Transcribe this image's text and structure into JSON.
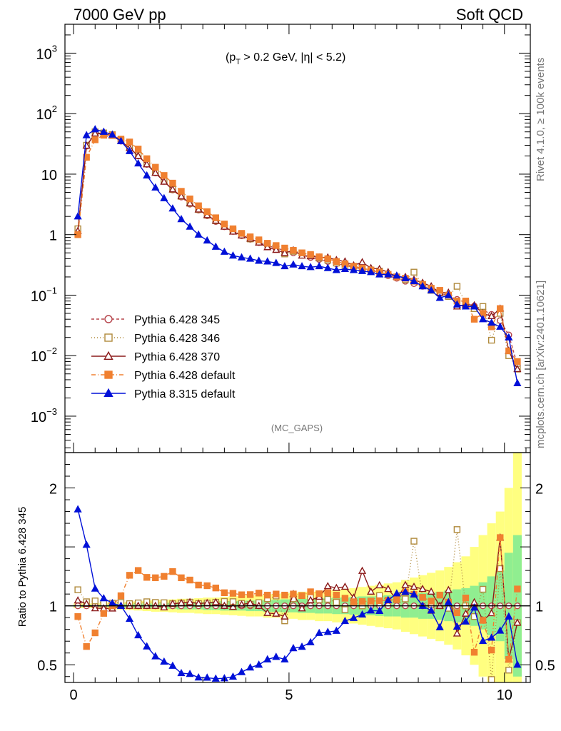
{
  "header": {
    "left_title": "7000 GeV pp",
    "right_title": "Soft QCD",
    "cut_label_pre": "(p",
    "cut_label_sub": "T",
    "cut_label_post": " > 0.2 GeV, |η| < 5.2)",
    "analysis_tag": "(MC_GAPS)",
    "side_top": "Rivet 4.1.0, ≥ 100k events",
    "side_bottom": "mcplots.cern.ch [arXiv:2401.10621]",
    "ratio_ylabel": "Ratio to Pythia 6.428 345"
  },
  "colors": {
    "p345": "#b5434a",
    "p346": "#b08a3c",
    "p370": "#8b1a1a",
    "p6def": "#f08030",
    "p8def": "#0010d8",
    "band_green": "#90ee90",
    "band_yellow": "#ffff80"
  },
  "chart_data": {
    "type": "line",
    "xlim": [
      -0.2,
      10.6
    ],
    "main": {
      "yscale": "log",
      "ylim": [
        0.00025,
        3000
      ],
      "y_ticks": [
        {
          "value": 0.001,
          "base": "10",
          "exp": "−3"
        },
        {
          "value": 0.01,
          "base": "10",
          "exp": "−2"
        },
        {
          "value": 0.1,
          "base": "10",
          "exp": "−1"
        },
        {
          "value": 1,
          "base": "1",
          "exp": ""
        },
        {
          "value": 10,
          "base": "10",
          "exp": ""
        },
        {
          "value": 100,
          "base": "10",
          "exp": "2"
        },
        {
          "value": 1000,
          "base": "10",
          "exp": "3"
        }
      ]
    },
    "ratio": {
      "ylim": [
        0.35,
        2.3
      ],
      "y_ticks": [
        {
          "value": 0.5,
          "label": "0.5"
        },
        {
          "value": 1,
          "label": "1"
        },
        {
          "value": 2,
          "label": "2"
        }
      ]
    },
    "x_ticks": [
      {
        "value": 0,
        "label": "0"
      },
      {
        "value": 5,
        "label": "5"
      },
      {
        "value": 10,
        "label": "10"
      }
    ],
    "legend": [
      {
        "key": "p345",
        "label": "Pythia 6.428 345",
        "marker": "circle-open",
        "dash": "4,3"
      },
      {
        "key": "p346",
        "label": "Pythia 6.428 346",
        "marker": "square-open",
        "dash": "1,3"
      },
      {
        "key": "p370",
        "label": "Pythia 6.428 370",
        "marker": "triangle-open",
        "dash": ""
      },
      {
        "key": "p6def",
        "label": "Pythia 6.428 default",
        "marker": "square-filled",
        "dash": "6,3,1,3"
      },
      {
        "key": "p8def",
        "label": "Pythia 8.315 default",
        "marker": "triangle-filled",
        "dash": ""
      }
    ],
    "x": [
      0.1,
      0.3,
      0.5,
      0.7,
      0.9,
      1.1,
      1.3,
      1.5,
      1.7,
      1.9,
      2.1,
      2.3,
      2.5,
      2.7,
      2.9,
      3.1,
      3.3,
      3.5,
      3.7,
      3.9,
      4.1,
      4.3,
      4.5,
      4.7,
      4.9,
      5.1,
      5.3,
      5.5,
      5.7,
      5.9,
      6.1,
      6.3,
      6.5,
      6.7,
      6.9,
      7.1,
      7.3,
      7.5,
      7.7,
      7.9,
      8.1,
      8.3,
      8.5,
      8.7,
      8.9,
      9.1,
      9.3,
      9.5,
      9.7,
      9.9,
      10.1,
      10.3
    ],
    "series": [
      {
        "key": "p345",
        "name": "Pythia 6.428 345",
        "values": [
          1.1,
          29,
          48,
          47,
          44,
          35,
          27,
          20,
          14.5,
          10.5,
          7.6,
          5.5,
          4.2,
          3.2,
          2.55,
          2.05,
          1.65,
          1.35,
          1.13,
          0.96,
          0.84,
          0.74,
          0.66,
          0.6,
          0.55,
          0.5,
          0.46,
          0.42,
          0.39,
          0.36,
          0.33,
          0.31,
          0.29,
          0.27,
          0.25,
          0.23,
          0.21,
          0.19,
          0.17,
          0.155,
          0.14,
          0.125,
          0.11,
          0.097,
          0.085,
          0.075,
          0.066,
          0.057,
          0.048,
          0.038,
          0.022,
          0.007
        ]
      },
      {
        "key": "p346",
        "name": "Pythia 6.428 346",
        "values": [
          1.25,
          30,
          50,
          48,
          45,
          36,
          27.5,
          20.5,
          15,
          10.8,
          7.8,
          5.6,
          4.3,
          3.3,
          2.6,
          2.1,
          1.7,
          1.4,
          1.17,
          0.98,
          0.85,
          0.76,
          0.7,
          0.65,
          0.48,
          0.53,
          0.5,
          0.45,
          0.41,
          0.38,
          0.34,
          0.3,
          0.3,
          0.27,
          0.26,
          0.25,
          0.22,
          0.2,
          0.18,
          0.24,
          0.15,
          0.12,
          0.11,
          0.095,
          0.14,
          0.075,
          0.06,
          0.065,
          0.018,
          0.05,
          0.01,
          0.006
        ]
      },
      {
        "key": "p370",
        "name": "Pythia 6.428 370",
        "values": [
          1.15,
          29.5,
          47,
          46,
          43,
          35,
          27,
          20,
          14.5,
          10.5,
          7.5,
          5.6,
          4.3,
          3.3,
          2.6,
          2.1,
          1.7,
          1.35,
          1.12,
          0.97,
          0.86,
          0.74,
          0.62,
          0.56,
          0.5,
          0.55,
          0.45,
          0.44,
          0.42,
          0.42,
          0.38,
          0.36,
          0.31,
          0.35,
          0.28,
          0.27,
          0.24,
          0.2,
          0.2,
          0.18,
          0.16,
          0.14,
          0.11,
          0.11,
          0.065,
          0.07,
          0.068,
          0.05,
          0.045,
          0.06,
          0.012,
          0.006
        ]
      },
      {
        "key": "p6def",
        "name": "Pythia 6.428 default",
        "values": [
          1.0,
          19,
          37,
          44,
          44,
          38,
          34,
          26,
          18,
          13,
          9.5,
          7.1,
          5.2,
          3.9,
          3.0,
          2.4,
          1.9,
          1.5,
          1.25,
          1.05,
          0.92,
          0.82,
          0.72,
          0.66,
          0.6,
          0.55,
          0.5,
          0.47,
          0.43,
          0.4,
          0.36,
          0.33,
          0.3,
          0.28,
          0.26,
          0.24,
          0.22,
          0.2,
          0.19,
          0.17,
          0.15,
          0.13,
          0.12,
          0.1,
          0.08,
          0.08,
          0.04,
          0.05,
          0.03,
          0.06,
          0.012,
          0.008
        ]
      },
      {
        "key": "p8def",
        "name": "Pythia 8.315 default",
        "values": [
          2.0,
          44,
          55,
          50,
          45,
          35,
          24,
          15,
          9.5,
          6.0,
          4.0,
          2.7,
          1.8,
          1.35,
          1.0,
          0.8,
          0.63,
          0.52,
          0.45,
          0.42,
          0.4,
          0.37,
          0.36,
          0.34,
          0.3,
          0.32,
          0.3,
          0.29,
          0.3,
          0.28,
          0.26,
          0.27,
          0.26,
          0.25,
          0.24,
          0.22,
          0.22,
          0.21,
          0.19,
          0.17,
          0.14,
          0.12,
          0.09,
          0.1,
          0.07,
          0.065,
          0.065,
          0.04,
          0.035,
          0.03,
          0.02,
          0.0035
        ]
      }
    ],
    "band": {
      "green": [
        0.01,
        0.01,
        0.01,
        0.01,
        0.01,
        0.015,
        0.015,
        0.02,
        0.02,
        0.02,
        0.025,
        0.025,
        0.03,
        0.03,
        0.03,
        0.035,
        0.035,
        0.04,
        0.04,
        0.04,
        0.045,
        0.045,
        0.05,
        0.05,
        0.055,
        0.055,
        0.06,
        0.06,
        0.065,
        0.065,
        0.07,
        0.07,
        0.075,
        0.08,
        0.08,
        0.085,
        0.09,
        0.09,
        0.1,
        0.1,
        0.11,
        0.11,
        0.12,
        0.13,
        0.14,
        0.15,
        0.17,
        0.2,
        0.25,
        0.3,
        0.45,
        0.6
      ],
      "yellow": [
        0.02,
        0.02,
        0.02,
        0.025,
        0.03,
        0.03,
        0.035,
        0.04,
        0.045,
        0.05,
        0.05,
        0.055,
        0.06,
        0.06,
        0.065,
        0.07,
        0.07,
        0.075,
        0.08,
        0.085,
        0.09,
        0.09,
        0.1,
        0.1,
        0.11,
        0.11,
        0.12,
        0.12,
        0.13,
        0.13,
        0.14,
        0.14,
        0.15,
        0.16,
        0.17,
        0.18,
        0.19,
        0.2,
        0.22,
        0.24,
        0.26,
        0.28,
        0.3,
        0.33,
        0.37,
        0.42,
        0.5,
        0.6,
        0.7,
        0.8,
        1.0,
        1.3
      ]
    }
  }
}
